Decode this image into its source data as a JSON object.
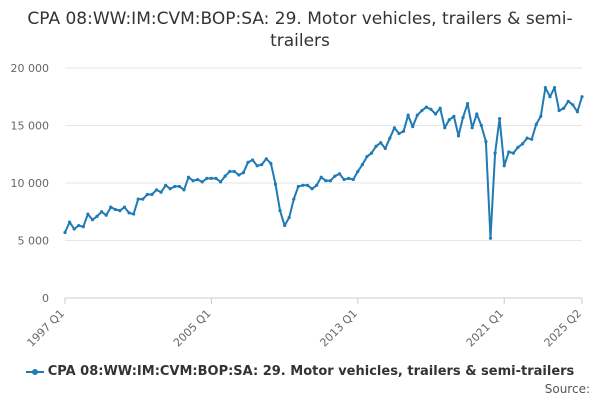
{
  "source_label": "Source:",
  "chart_data": {
    "type": "line",
    "title": "CPA 08:WW:IM:CVM:BOP:SA: 29. Motor vehicles, trailers & semi-trailers",
    "xlabel": "",
    "ylabel": "",
    "ylim": [
      0,
      20000
    ],
    "yticks": [
      "0",
      "5 000",
      "10 000",
      "15 000",
      "20 000"
    ],
    "xticks": [
      "1997 Q1",
      "2005 Q1",
      "2013 Q1",
      "2021 Q1",
      "2025 Q2"
    ],
    "grid": true,
    "legend_position": "bottom",
    "color": "#1f7ab5",
    "x_start": "1997 Q1",
    "series": [
      {
        "name": "CPA 08:WW:IM:CVM:BOP:SA: 29. Motor vehicles, trailers & semi-trailers",
        "values": [
          5700,
          6600,
          6000,
          6300,
          6200,
          7300,
          6800,
          7100,
          7500,
          7200,
          7900,
          7700,
          7600,
          7900,
          7400,
          7300,
          8600,
          8600,
          9000,
          9000,
          9400,
          9200,
          9800,
          9500,
          9700,
          9700,
          9400,
          10500,
          10200,
          10300,
          10100,
          10400,
          10400,
          10400,
          10100,
          10600,
          11000,
          11000,
          10700,
          10900,
          11800,
          12000,
          11500,
          11600,
          12100,
          11700,
          9900,
          7600,
          6300,
          7000,
          8600,
          9700,
          9800,
          9800,
          9500,
          9800,
          10500,
          10200,
          10200,
          10600,
          10800,
          10300,
          10400,
          10300,
          11000,
          11600,
          12300,
          12600,
          13200,
          13500,
          13000,
          13900,
          14800,
          14300,
          14500,
          15900,
          14900,
          15900,
          16300,
          16600,
          16400,
          16000,
          16500,
          14800,
          15500,
          15800,
          14100,
          15700,
          16900,
          14800,
          16000,
          15000,
          13600,
          5200,
          12600,
          15600,
          11500,
          12700,
          12600,
          13100,
          13400,
          13900,
          13800,
          15100,
          15800,
          18300,
          17500,
          18300,
          16300,
          16500,
          17100,
          16800,
          16200,
          17500
        ]
      }
    ]
  }
}
